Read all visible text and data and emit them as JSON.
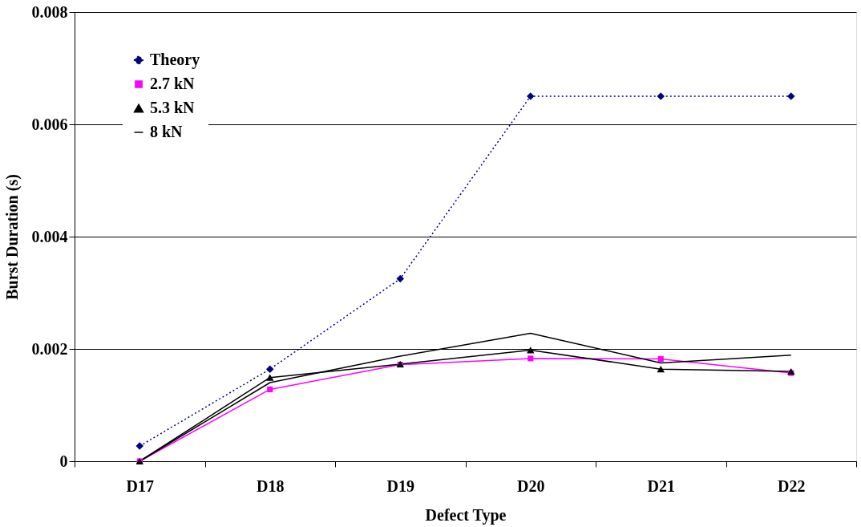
{
  "chart_data": {
    "type": "line",
    "xlabel": "Defect Type",
    "ylabel": "Burst Duration (s)",
    "categories": [
      "D17",
      "D18",
      "D19",
      "D20",
      "D21",
      "D22"
    ],
    "series": [
      {
        "name": "Theory",
        "color": "#000080",
        "marker": "diamond",
        "line_style": "dotted",
        "values": [
          0.00027,
          0.00164,
          0.00325,
          0.0065,
          0.0065,
          0.0065
        ]
      },
      {
        "name": "2.7 kN",
        "color": "#ff00ff",
        "marker": "square",
        "line_style": "solid",
        "values": [
          0,
          0.00128,
          0.00172,
          0.00183,
          0.00182,
          0.00157
        ]
      },
      {
        "name": "5.3 kN",
        "color": "#000000",
        "marker": "triangle",
        "line_style": "solid",
        "values": [
          0,
          0.00149,
          0.00173,
          0.00198,
          0.00164,
          0.0016
        ]
      },
      {
        "name": "8 kN",
        "color": "#000000",
        "marker": "none",
        "line_style": "solid",
        "values": [
          0,
          0.0014,
          0.00187,
          0.00228,
          0.00175,
          0.00189
        ]
      }
    ],
    "ylim": [
      0,
      0.008
    ],
    "yticks": [
      0,
      0.002,
      0.004,
      0.006,
      0.008
    ],
    "grid": "y",
    "legend": "top left"
  }
}
